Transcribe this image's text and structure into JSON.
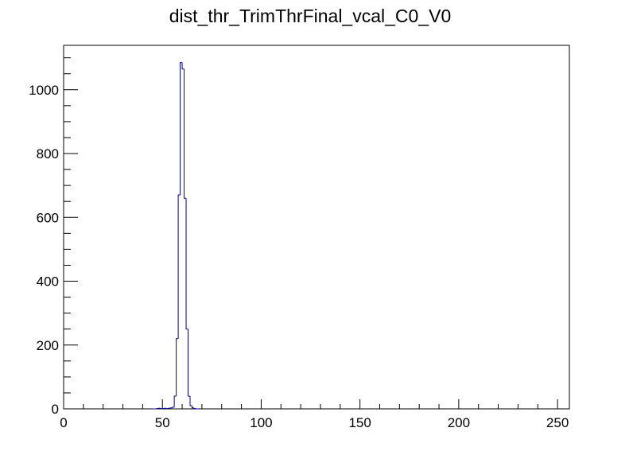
{
  "chart_data": {
    "type": "histogram",
    "title": "dist_thr_TrimThrFinal_vcal_C0_V0",
    "bins": [
      45,
      46,
      47,
      48,
      49,
      50,
      51,
      52,
      53,
      54,
      55,
      56,
      57,
      58,
      59,
      60,
      61,
      62,
      63,
      64,
      65,
      66,
      67,
      68
    ],
    "counts": [
      0,
      0,
      1,
      2,
      1,
      1,
      2,
      1,
      2,
      3,
      5,
      40,
      220,
      670,
      1085,
      1065,
      660,
      250,
      40,
      10,
      3,
      1,
      0
    ],
    "color": "#000099",
    "xlim": [
      0,
      256
    ],
    "xticks": [
      0,
      50,
      100,
      150,
      200,
      250
    ],
    "x_minor_divisions": 5,
    "ylim": [
      0,
      1139
    ],
    "yticks": [
      0,
      200,
      400,
      600,
      800,
      1000
    ],
    "y_minor_divisions": 4
  }
}
